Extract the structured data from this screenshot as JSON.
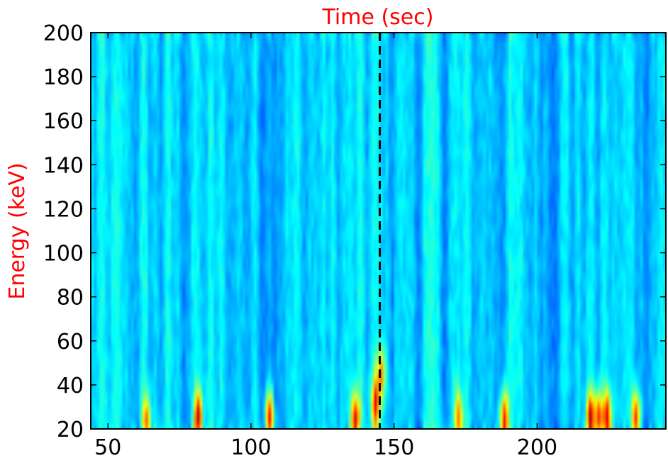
{
  "chart_data": {
    "type": "heatmap",
    "title": "Time (sec)",
    "xlabel": "",
    "ylabel": "Energy (keV)",
    "xlim": [
      44,
      245
    ],
    "ylim": [
      20,
      200
    ],
    "x_ticks": [
      50,
      100,
      150,
      200
    ],
    "y_ticks": [
      20,
      40,
      60,
      80,
      100,
      120,
      140,
      160,
      180,
      200
    ],
    "x_tick_labels": [
      "50",
      "100",
      "150",
      "200"
    ],
    "y_tick_labels": [
      "20",
      "40",
      "60",
      "80",
      "100",
      "120",
      "140",
      "160",
      "180",
      "200"
    ],
    "marker_line": {
      "x": 145,
      "style": "dashed",
      "color": "#000000"
    },
    "colormap": "jet",
    "grid": false,
    "title_color": "#ff0000",
    "ylabel_color": "#ff0000",
    "hot_spots": [
      {
        "x": 63,
        "y": 22,
        "intensity": 0.72
      },
      {
        "x": 81,
        "y": 25,
        "intensity": 0.88
      },
      {
        "x": 106,
        "y": 24,
        "intensity": 0.9
      },
      {
        "x": 136,
        "y": 25,
        "intensity": 0.85
      },
      {
        "x": 143,
        "y": 30,
        "intensity": 0.78
      },
      {
        "x": 146,
        "y": 45,
        "intensity": 0.7
      },
      {
        "x": 173,
        "y": 24,
        "intensity": 0.72
      },
      {
        "x": 189,
        "y": 24,
        "intensity": 0.88
      },
      {
        "x": 219,
        "y": 25,
        "intensity": 0.88
      },
      {
        "x": 222,
        "y": 25,
        "intensity": 0.86
      },
      {
        "x": 225,
        "y": 25,
        "intensity": 0.85
      },
      {
        "x": 235,
        "y": 24,
        "intensity": 0.84
      }
    ]
  }
}
